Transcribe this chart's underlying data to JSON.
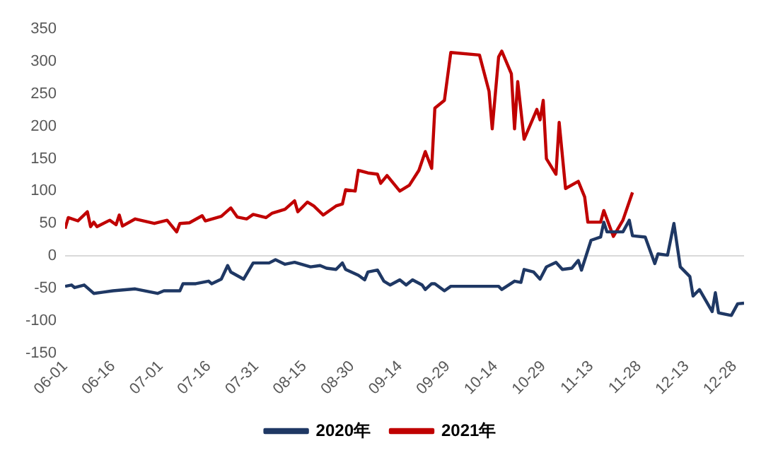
{
  "chart_data": {
    "type": "line",
    "legend": "bottom",
    "grid": false,
    "marker": "none",
    "line_style": "solid",
    "xlim": [
      "--06-01",
      "--12-31"
    ],
    "xticks": [
      {
        "value": "--06-01",
        "label": "06-01"
      },
      {
        "value": "--06-16",
        "label": "06-16"
      },
      {
        "value": "--07-01",
        "label": "07-01"
      },
      {
        "value": "--07-16",
        "label": "07-16"
      },
      {
        "value": "--07-31",
        "label": "07-31"
      },
      {
        "value": "--08-15",
        "label": "08-15"
      },
      {
        "value": "--08-30",
        "label": "08-30"
      },
      {
        "value": "--09-14",
        "label": "09-14"
      },
      {
        "value": "--09-29",
        "label": "09-29"
      },
      {
        "value": "--10-14",
        "label": "10-14"
      },
      {
        "value": "--10-29",
        "label": "10-29"
      },
      {
        "value": "--11-13",
        "label": "11-13"
      },
      {
        "value": "--11-28",
        "label": "11-28"
      },
      {
        "value": "--12-13",
        "label": "12-13"
      },
      {
        "value": "--12-28",
        "label": "12-28"
      }
    ],
    "ylim": [
      -150,
      350
    ],
    "yticks": [
      -150,
      -100,
      -50,
      0,
      50,
      100,
      150,
      200,
      250,
      300,
      350
    ],
    "ref_lines": [
      {
        "axis": "y",
        "value": 0,
        "color": "#d9d9d9"
      }
    ],
    "series": [
      {
        "name": "2020年",
        "color": "#1f3864",
        "x": [
          "--06-01",
          "--06-03",
          "--06-04",
          "--06-07",
          "--06-10",
          "--06-13",
          "--06-16",
          "--06-23",
          "--06-30",
          "--07-02",
          "--07-07",
          "--07-08",
          "--07-12",
          "--07-16",
          "--07-17",
          "--07-20",
          "--07-22",
          "--07-23",
          "--07-27",
          "--07-30",
          "--08-04",
          "--08-06",
          "--08-09",
          "--08-12",
          "--08-17",
          "--08-20",
          "--08-22",
          "--08-25",
          "--08-27",
          "--08-28",
          "--09-01",
          "--09-03",
          "--09-04",
          "--09-07",
          "--09-09",
          "--09-11",
          "--09-14",
          "--09-16",
          "--09-18",
          "--09-21",
          "--09-22",
          "--09-24",
          "--09-25",
          "--09-28",
          "--09-30",
          "--10-15",
          "--10-16",
          "--10-20",
          "--10-22",
          "--10-23",
          "--10-26",
          "--10-28",
          "--10-30",
          "--11-02",
          "--11-04",
          "--11-07",
          "--11-09",
          "--11-10",
          "--11-13",
          "--11-16",
          "--11-17",
          "--11-18",
          "--11-23",
          "--11-25",
          "--11-26",
          "--11-30",
          "--12-03",
          "--12-04",
          "--12-07",
          "--12-09",
          "--12-11",
          "--12-14",
          "--12-15",
          "--12-17",
          "--12-21",
          "--12-22",
          "--12-23",
          "--12-27",
          "--12-29",
          "--12-31"
        ],
        "values": [
          -47,
          -45,
          -49,
          -45,
          -58,
          -56,
          -54,
          -51,
          -58,
          -54,
          -54,
          -43,
          -43,
          -39,
          -43,
          -36,
          -15,
          -25,
          -36,
          -11,
          -11,
          -6,
          -13,
          -10,
          -17,
          -15,
          -19,
          -21,
          -11,
          -21,
          -30,
          -37,
          -25,
          -22,
          -39,
          -45,
          -37,
          -45,
          -37,
          -45,
          -52,
          -43,
          -43,
          -54,
          -47,
          -47,
          -52,
          -39,
          -41,
          -21,
          -25,
          -36,
          -17,
          -10,
          -21,
          -19,
          -7,
          -22,
          24,
          29,
          52,
          37,
          37,
          55,
          31,
          29,
          -12,
          3,
          1,
          50,
          -17,
          -32,
          -62,
          -52,
          -86,
          -57,
          -88,
          -92,
          -74,
          -73
        ]
      },
      {
        "name": "2021年",
        "color": "#c00000",
        "x": [
          "--06-01",
          "--06-02",
          "--06-05",
          "--06-08",
          "--06-09",
          "--06-10",
          "--06-11",
          "--06-15",
          "--06-17",
          "--06-18",
          "--06-19",
          "--06-23",
          "--06-29",
          "--07-03",
          "--07-06",
          "--07-07",
          "--07-10",
          "--07-14",
          "--07-15",
          "--07-20",
          "--07-23",
          "--07-25",
          "--07-28",
          "--07-30",
          "--08-03",
          "--08-05",
          "--08-09",
          "--08-12",
          "--08-13",
          "--08-16",
          "--08-18",
          "--08-21",
          "--08-25",
          "--08-27",
          "--08-28",
          "--08-31",
          "--09-01",
          "--09-04",
          "--09-07",
          "--09-08",
          "--09-10",
          "--09-14",
          "--09-17",
          "--09-20",
          "--09-22",
          "--09-24",
          "--09-25",
          "--09-28",
          "--09-30",
          "--10-09",
          "--10-12",
          "--10-13",
          "--10-15",
          "--10-16",
          "--10-19",
          "--10-20",
          "--10-21",
          "--10-23",
          "--10-27",
          "--10-28",
          "--10-29",
          "--10-30",
          "--11-02",
          "--11-03",
          "--11-05",
          "--11-09",
          "--11-11",
          "--11-12",
          "--11-16",
          "--11-17",
          "--11-20",
          "--11-23",
          "--11-26"
        ],
        "values": [
          42,
          59,
          54,
          68,
          45,
          52,
          45,
          55,
          48,
          63,
          46,
          57,
          50,
          55,
          37,
          50,
          51,
          62,
          54,
          61,
          74,
          60,
          57,
          64,
          59,
          66,
          72,
          85,
          68,
          83,
          77,
          63,
          77,
          80,
          102,
          100,
          132,
          128,
          126,
          112,
          124,
          100,
          109,
          132,
          161,
          135,
          228,
          240,
          314,
          310,
          254,
          196,
          307,
          316,
          281,
          196,
          269,
          180,
          226,
          210,
          240,
          150,
          126,
          206,
          104,
          115,
          91,
          52,
          52,
          70,
          30,
          55,
          98
        ]
      }
    ]
  }
}
